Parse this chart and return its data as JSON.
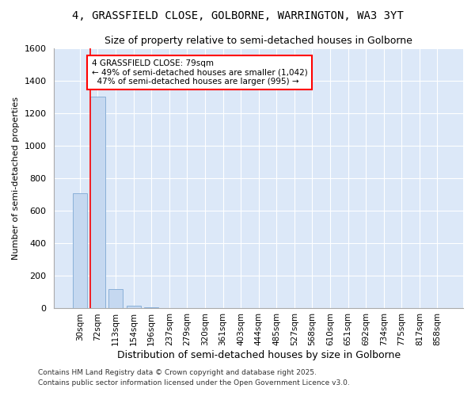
{
  "title_line1": "4, GRASSFIELD CLOSE, GOLBORNE, WARRINGTON, WA3 3YT",
  "title_line2": "Size of property relative to semi-detached houses in Golborne",
  "xlabel": "Distribution of semi-detached houses by size in Golborne",
  "ylabel": "Number of semi-detached properties",
  "categories": [
    "30sqm",
    "72sqm",
    "113sqm",
    "154sqm",
    "196sqm",
    "237sqm",
    "279sqm",
    "320sqm",
    "361sqm",
    "403sqm",
    "444sqm",
    "485sqm",
    "527sqm",
    "568sqm",
    "610sqm",
    "651sqm",
    "692sqm",
    "734sqm",
    "775sqm",
    "817sqm",
    "858sqm"
  ],
  "values": [
    710,
    1300,
    120,
    15,
    5,
    0,
    0,
    0,
    0,
    0,
    0,
    0,
    0,
    0,
    0,
    0,
    0,
    0,
    0,
    0,
    0
  ],
  "bar_color": "#c5d8f0",
  "bar_edge_color": "#8ab0d8",
  "vline_x": 0.6,
  "annotation_text": "4 GRASSFIELD CLOSE: 79sqm\n← 49% of semi-detached houses are smaller (1,042)\n  47% of semi-detached houses are larger (995) →",
  "ylim_max": 1600,
  "yticks": [
    0,
    200,
    400,
    600,
    800,
    1000,
    1200,
    1400,
    1600
  ],
  "plot_bg": "#dce8f8",
  "grid_color": "#ffffff",
  "fig_bg": "#ffffff",
  "footer_line1": "Contains HM Land Registry data © Crown copyright and database right 2025.",
  "footer_line2": "Contains public sector information licensed under the Open Government Licence v3.0."
}
